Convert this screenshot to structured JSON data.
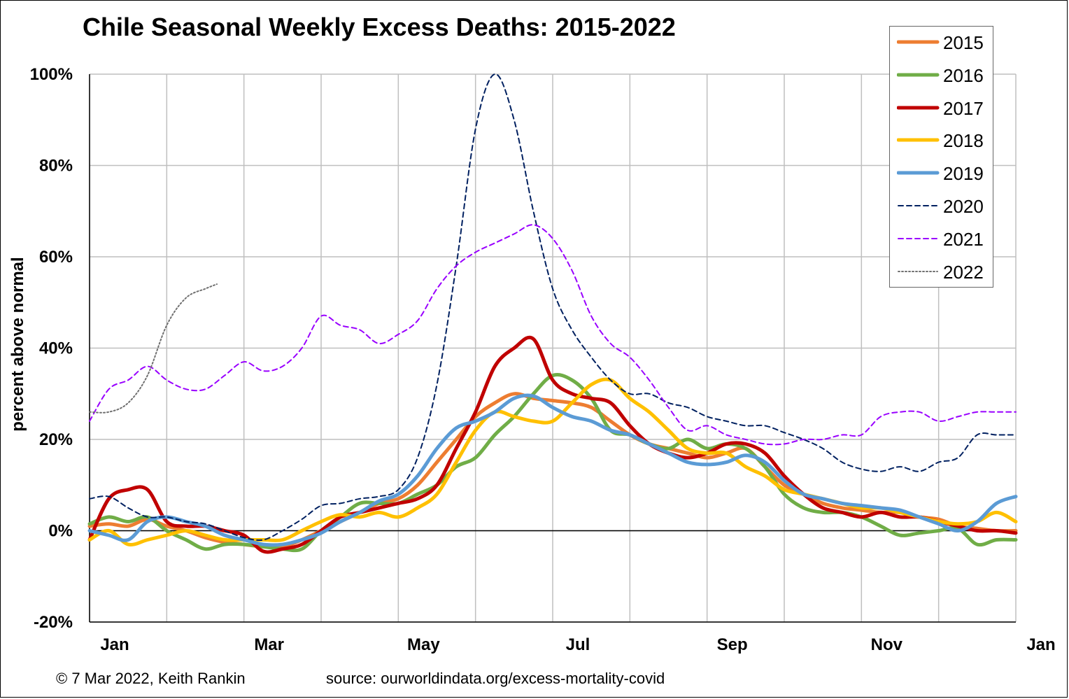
{
  "chart_data": {
    "type": "line",
    "title": "Chile Seasonal Weekly Excess Deaths: 2015-2022",
    "ylabel": "percent above normal",
    "xlabel": "",
    "ylim": [
      -20,
      100
    ],
    "xlim": [
      0,
      12
    ],
    "y_ticks": [
      -20,
      0,
      20,
      40,
      60,
      80,
      100
    ],
    "y_tick_labels": [
      "-20%",
      "0%",
      "20%",
      "40%",
      "60%",
      "80%",
      "100%"
    ],
    "x_tick_labels": [
      "Jan",
      "Mar",
      "May",
      "Jul",
      "Sep",
      "Nov",
      "Jan"
    ],
    "x_tick_positions": [
      0,
      2,
      4,
      6,
      8,
      10,
      12
    ],
    "grid": true,
    "legend_position": "top-right",
    "series": [
      {
        "name": "2015",
        "color": "#ED7D31",
        "dash": "solid",
        "width": "thick",
        "x": [
          0.0,
          0.25,
          0.5,
          0.75,
          1.0,
          1.25,
          1.5,
          1.75,
          2.0,
          2.25,
          2.5,
          2.75,
          3.0,
          3.25,
          3.5,
          3.75,
          4.0,
          4.25,
          4.5,
          4.75,
          5.0,
          5.25,
          5.5,
          5.75,
          6.0,
          6.25,
          6.5,
          6.75,
          7.0,
          7.25,
          7.5,
          7.75,
          8.0,
          8.25,
          8.5,
          8.75,
          9.0,
          9.25,
          9.5,
          9.75,
          10.0,
          10.25,
          10.5,
          10.75,
          11.0,
          11.25,
          11.5,
          11.75,
          12.0
        ],
        "y": [
          1,
          1.5,
          1,
          2.5,
          1,
          0,
          -1.5,
          -2.5,
          -3,
          -3.5,
          -3.5,
          -2,
          0,
          2,
          4,
          6,
          7,
          10,
          15,
          20,
          25,
          28,
          30,
          29,
          28.5,
          28,
          27,
          24,
          21,
          19,
          18,
          17,
          16,
          17,
          18,
          14,
          10,
          8,
          6,
          5,
          4.5,
          4,
          4,
          3,
          2.5,
          1,
          0.5,
          0,
          0
        ]
      },
      {
        "name": "2016",
        "color": "#70AD47",
        "dash": "solid",
        "width": "thick",
        "x": [
          0.0,
          0.25,
          0.5,
          0.75,
          1.0,
          1.25,
          1.5,
          1.75,
          2.0,
          2.25,
          2.5,
          2.75,
          3.0,
          3.25,
          3.5,
          3.75,
          4.0,
          4.25,
          4.5,
          4.75,
          5.0,
          5.25,
          5.5,
          5.75,
          6.0,
          6.25,
          6.5,
          6.75,
          7.0,
          7.25,
          7.5,
          7.75,
          8.0,
          8.25,
          8.5,
          8.75,
          9.0,
          9.25,
          9.5,
          9.75,
          10.0,
          10.25,
          10.5,
          10.75,
          11.0,
          11.25,
          11.5,
          11.75,
          12.0
        ],
        "y": [
          1.5,
          3,
          2,
          3,
          0,
          -2,
          -4,
          -3,
          -3,
          -3.5,
          -4,
          -4,
          0,
          3,
          6,
          6,
          6,
          8,
          10,
          14,
          16,
          21,
          25,
          30,
          34,
          33,
          29,
          22,
          21,
          19,
          18,
          20,
          18,
          19,
          18,
          14,
          8,
          5,
          4,
          4,
          3,
          1,
          -1,
          -0.5,
          0,
          0.5,
          -3,
          -2,
          -2
        ]
      },
      {
        "name": "2017",
        "color": "#C00000",
        "dash": "solid",
        "width": "thick",
        "x": [
          0.0,
          0.25,
          0.5,
          0.75,
          1.0,
          1.25,
          1.5,
          1.75,
          2.0,
          2.25,
          2.5,
          2.75,
          3.0,
          3.25,
          3.5,
          3.75,
          4.0,
          4.25,
          4.5,
          4.75,
          5.0,
          5.25,
          5.5,
          5.75,
          6.0,
          6.25,
          6.5,
          6.75,
          7.0,
          7.25,
          7.5,
          7.75,
          8.0,
          8.25,
          8.5,
          8.75,
          9.0,
          9.25,
          9.5,
          9.75,
          10.0,
          10.25,
          10.5,
          10.75,
          11.0,
          11.25,
          11.5,
          11.75,
          12.0
        ],
        "y": [
          -2,
          7,
          9,
          9,
          2,
          1,
          1,
          0,
          -1,
          -4.5,
          -4,
          -3,
          0,
          3,
          4,
          5,
          6,
          7,
          10,
          18,
          26,
          36,
          40,
          42,
          33,
          30,
          29,
          28,
          23,
          19,
          17,
          16,
          17,
          19,
          19,
          17,
          12,
          8,
          5,
          4,
          3,
          4,
          3,
          3,
          2,
          1,
          0,
          0,
          -0.5
        ]
      },
      {
        "name": "2018",
        "color": "#FFC000",
        "dash": "solid",
        "width": "thick",
        "x": [
          0.0,
          0.25,
          0.5,
          0.75,
          1.0,
          1.25,
          1.5,
          1.75,
          2.0,
          2.25,
          2.5,
          2.75,
          3.0,
          3.25,
          3.5,
          3.75,
          4.0,
          4.25,
          4.5,
          4.75,
          5.0,
          5.25,
          5.5,
          5.75,
          6.0,
          6.25,
          6.5,
          6.75,
          7.0,
          7.25,
          7.5,
          7.75,
          8.0,
          8.25,
          8.5,
          8.75,
          9.0,
          9.25,
          9.5,
          9.75,
          10.0,
          10.25,
          10.5,
          10.75,
          11.0,
          11.25,
          11.5,
          11.75,
          12.0
        ],
        "y": [
          -2,
          0,
          -3,
          -2,
          -1,
          0,
          -1,
          -2,
          -2,
          -2,
          -2,
          0,
          2,
          3.5,
          3,
          4,
          3,
          5,
          8,
          15,
          22,
          26,
          25,
          24,
          24,
          28,
          32,
          33,
          29,
          26,
          22,
          18,
          17,
          17,
          14,
          12,
          9,
          8,
          7,
          6,
          5,
          5,
          4,
          3,
          2,
          1.5,
          2,
          4,
          2
        ]
      },
      {
        "name": "2019",
        "color": "#5B9BD5",
        "dash": "solid",
        "width": "thick",
        "x": [
          0.0,
          0.25,
          0.5,
          0.75,
          1.0,
          1.25,
          1.5,
          1.75,
          2.0,
          2.25,
          2.5,
          2.75,
          3.0,
          3.25,
          3.5,
          3.75,
          4.0,
          4.25,
          4.5,
          4.75,
          5.0,
          5.25,
          5.5,
          5.75,
          6.0,
          6.25,
          6.5,
          6.75,
          7.0,
          7.25,
          7.5,
          7.75,
          8.0,
          8.25,
          8.5,
          8.75,
          9.0,
          9.25,
          9.5,
          9.75,
          10.0,
          10.25,
          10.5,
          10.75,
          11.0,
          11.25,
          11.5,
          11.75,
          12.0
        ],
        "y": [
          0,
          -1,
          -2,
          2,
          3,
          2,
          1,
          -1,
          -2,
          -3,
          -3,
          -2,
          -0.5,
          2,
          4,
          6.5,
          8,
          12,
          18,
          22.5,
          24,
          26,
          29,
          29.5,
          27,
          25,
          24,
          22,
          21,
          19,
          17,
          15,
          14.5,
          15,
          16.5,
          15,
          11,
          8,
          7,
          6,
          5.5,
          5,
          4.5,
          3,
          1.5,
          0,
          2,
          6,
          7.5
        ]
      },
      {
        "name": "2020",
        "color": "#002060",
        "dash": "dashed",
        "width": "thin",
        "x": [
          0.0,
          0.25,
          0.5,
          0.75,
          1.0,
          1.25,
          1.5,
          1.75,
          2.0,
          2.25,
          2.5,
          2.75,
          3.0,
          3.25,
          3.5,
          3.75,
          4.0,
          4.25,
          4.5,
          4.75,
          5.0,
          5.25,
          5.5,
          5.75,
          6.0,
          6.25,
          6.5,
          6.75,
          7.0,
          7.25,
          7.5,
          7.75,
          8.0,
          8.25,
          8.5,
          8.75,
          9.0,
          9.25,
          9.5,
          9.75,
          10.0,
          10.25,
          10.5,
          10.75,
          11.0,
          11.25,
          11.5,
          11.75,
          12.0
        ],
        "y": [
          7,
          7.5,
          5,
          3,
          3,
          2,
          1.5,
          0,
          -1.5,
          -2,
          0,
          2.5,
          5.5,
          6,
          7,
          7.5,
          9,
          16,
          32,
          58,
          88,
          100,
          90,
          70,
          53,
          44,
          38,
          33,
          30,
          30,
          28,
          27,
          25,
          24,
          23,
          23,
          21.5,
          20,
          18,
          15,
          13.5,
          13,
          14,
          13,
          15,
          16,
          21,
          21,
          21
        ]
      },
      {
        "name": "2021",
        "color": "#9900FF",
        "dash": "dashed",
        "width": "thin",
        "x": [
          0.0,
          0.25,
          0.5,
          0.75,
          1.0,
          1.25,
          1.5,
          1.75,
          2.0,
          2.25,
          2.5,
          2.75,
          3.0,
          3.25,
          3.5,
          3.75,
          4.0,
          4.25,
          4.5,
          4.75,
          5.0,
          5.25,
          5.5,
          5.75,
          6.0,
          6.25,
          6.5,
          6.75,
          7.0,
          7.25,
          7.5,
          7.75,
          8.0,
          8.25,
          8.5,
          8.75,
          9.0,
          9.25,
          9.5,
          9.75,
          10.0,
          10.25,
          10.5,
          10.75,
          11.0,
          11.25,
          11.5,
          11.75,
          12.0
        ],
        "y": [
          24,
          31,
          33,
          36,
          33,
          31,
          31,
          34,
          37,
          35,
          36,
          40,
          47,
          45,
          44,
          41,
          43,
          46,
          53,
          58,
          61,
          63,
          65,
          67,
          64,
          57,
          47,
          41,
          38,
          33,
          27,
          22,
          23,
          21,
          20,
          19,
          19,
          20,
          20,
          21,
          21,
          25,
          26,
          26,
          24,
          25,
          26,
          26,
          26
        ]
      },
      {
        "name": "2022",
        "color": "#707070",
        "dash": "dotted",
        "width": "thin",
        "x": [
          0.0,
          0.25,
          0.5,
          0.75,
          1.0,
          1.25,
          1.5,
          1.65
        ],
        "y": [
          26,
          26,
          28,
          34,
          45,
          51,
          53,
          54
        ]
      }
    ]
  },
  "footer": {
    "copyright": "© 7 Mar 2022, Keith Rankin",
    "source": "source: ourworldindata.org/excess-mortality-covid"
  }
}
